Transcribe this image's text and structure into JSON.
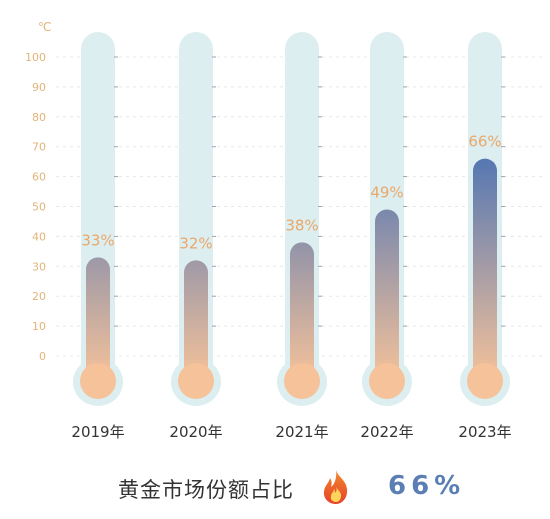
{
  "chart_data": {
    "type": "bar",
    "unit_label": "℃",
    "categories": [
      "2019年",
      "2020年",
      "2021年",
      "2022年",
      "2023年"
    ],
    "values": [
      33,
      32,
      38,
      49,
      66
    ],
    "data_labels": [
      "33%",
      "32%",
      "38%",
      "49%",
      "66%"
    ],
    "yticks": [
      0,
      10,
      20,
      30,
      40,
      50,
      60,
      70,
      80,
      90,
      100
    ],
    "ylim": [
      0,
      100
    ],
    "grid": true,
    "colors": {
      "tube_bg": "#dceef0",
      "fill_top": "#4f74b3",
      "fill_bottom": "#f5c29a",
      "bulb": "#f5c29a",
      "tick_label": "#e2b47a",
      "data_label": "#e9a86a",
      "category_label": "#333333"
    }
  },
  "footer": {
    "label": "黄金市场份额占比",
    "value": "66%",
    "icon": "flame-icon",
    "value_color": "#5b7fb5"
  }
}
